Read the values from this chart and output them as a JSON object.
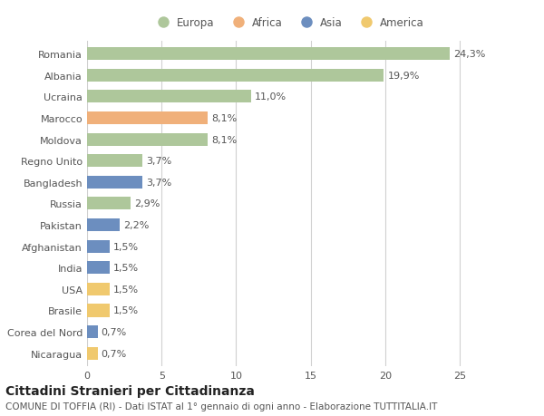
{
  "countries": [
    "Romania",
    "Albania",
    "Ucraina",
    "Marocco",
    "Moldova",
    "Regno Unito",
    "Bangladesh",
    "Russia",
    "Pakistan",
    "Afghanistan",
    "India",
    "USA",
    "Brasile",
    "Corea del Nord",
    "Nicaragua"
  ],
  "values": [
    24.3,
    19.9,
    11.0,
    8.1,
    8.1,
    3.7,
    3.7,
    2.9,
    2.2,
    1.5,
    1.5,
    1.5,
    1.5,
    0.7,
    0.7
  ],
  "labels": [
    "24,3%",
    "19,9%",
    "11,0%",
    "8,1%",
    "8,1%",
    "3,7%",
    "3,7%",
    "2,9%",
    "2,2%",
    "1,5%",
    "1,5%",
    "1,5%",
    "1,5%",
    "0,7%",
    "0,7%"
  ],
  "continents": [
    "Europa",
    "Europa",
    "Europa",
    "Africa",
    "Europa",
    "Europa",
    "Asia",
    "Europa",
    "Asia",
    "Asia",
    "Asia",
    "America",
    "America",
    "Asia",
    "America"
  ],
  "continent_colors": {
    "Europa": "#aec79b",
    "Africa": "#f0b07a",
    "Asia": "#6c8ebf",
    "America": "#f0c96e"
  },
  "legend_order": [
    "Europa",
    "Africa",
    "Asia",
    "America"
  ],
  "title": "Cittadini Stranieri per Cittadinanza",
  "subtitle": "COMUNE DI TOFFIA (RI) - Dati ISTAT al 1° gennaio di ogni anno - Elaborazione TUTTITALIA.IT",
  "xlim": [
    0,
    27
  ],
  "xticks": [
    0,
    5,
    10,
    15,
    20,
    25
  ],
  "bg_color": "#ffffff",
  "grid_color": "#d0d0d0",
  "bar_height": 0.6,
  "label_fontsize": 8,
  "title_fontsize": 10,
  "subtitle_fontsize": 7.5,
  "tick_fontsize": 8,
  "legend_fontsize": 8.5
}
